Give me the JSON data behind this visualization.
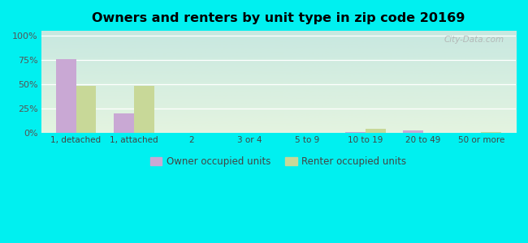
{
  "title": "Owners and renters by unit type in zip code 20169",
  "categories": [
    "1, detached",
    "1, attached",
    "2",
    "3 or 4",
    "5 to 9",
    "10 to 19",
    "20 to 49",
    "50 or more"
  ],
  "owner_values": [
    76,
    20,
    0,
    0,
    0,
    1,
    2,
    0
  ],
  "renter_values": [
    48,
    48,
    0,
    0,
    0,
    4,
    0,
    1
  ],
  "owner_color": "#c9a8d4",
  "renter_color": "#c8d898",
  "background_color": "#00f0f0",
  "plot_bg_top": "#c8e8e0",
  "plot_bg_bottom": "#e4f4e0",
  "yticks": [
    0,
    25,
    50,
    75,
    100
  ],
  "ylim": [
    0,
    105
  ],
  "bar_width": 0.35,
  "legend_owner": "Owner occupied units",
  "legend_renter": "Renter occupied units",
  "watermark": "City-Data.com"
}
